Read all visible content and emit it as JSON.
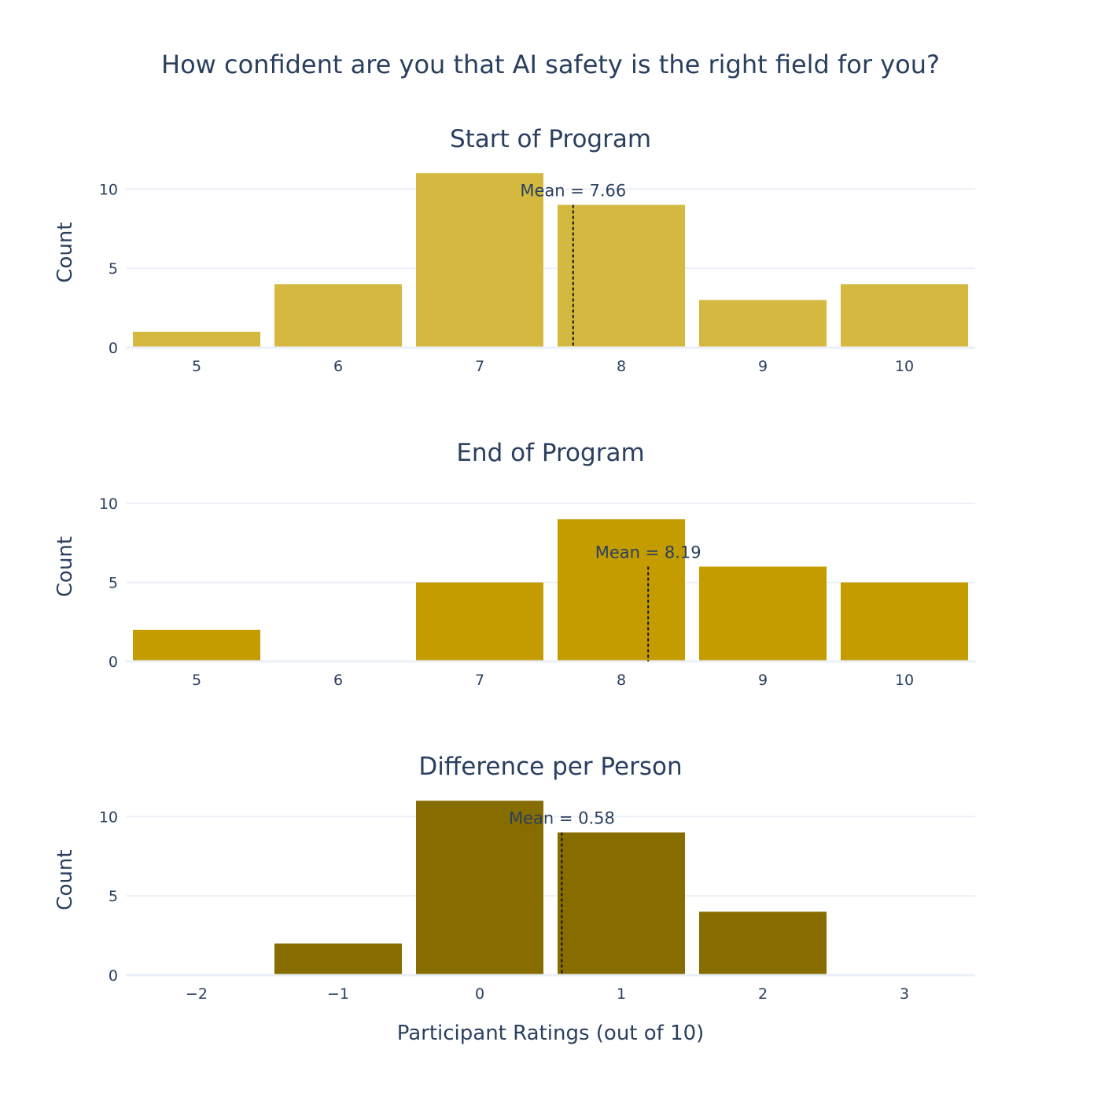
{
  "title": "How confident are you that AI safety is the right field for you?",
  "xlabel": "Participant Ratings (out of 10)",
  "chart_data": [
    {
      "type": "bar",
      "title": "Start of Program",
      "categories": [
        "5",
        "6",
        "7",
        "8",
        "9",
        "10"
      ],
      "x": [
        5,
        6,
        7,
        8,
        9,
        10
      ],
      "values": [
        1,
        4,
        11,
        9,
        3,
        4
      ],
      "ylabel": "Count",
      "ylim": [
        0,
        12
      ],
      "yticks": [
        0,
        5,
        10
      ],
      "mean": 7.66,
      "mean_label": "Mean = 7.66",
      "color": "#d4b83f"
    },
    {
      "type": "bar",
      "title": "End of Program",
      "categories": [
        "5",
        "6",
        "7",
        "8",
        "9",
        "10"
      ],
      "x": [
        5,
        6,
        7,
        8,
        9,
        10
      ],
      "values": [
        2,
        0,
        5,
        9,
        6,
        5
      ],
      "ylabel": "Count",
      "ylim": [
        0,
        12
      ],
      "yticks": [
        0,
        5,
        10
      ],
      "mean": 8.19,
      "mean_label": "Mean = 8.19",
      "color": "#c49c00"
    },
    {
      "type": "bar",
      "title": "Difference per Person",
      "categories": [
        "−2",
        "−1",
        "0",
        "1",
        "2",
        "3"
      ],
      "x": [
        -2,
        -1,
        0,
        1,
        2,
        3
      ],
      "values": [
        0,
        2,
        11,
        9,
        4,
        0
      ],
      "ylabel": "Count",
      "ylim": [
        0,
        12
      ],
      "yticks": [
        0,
        5,
        10
      ],
      "mean": 0.58,
      "mean_label": "Mean = 0.58",
      "color": "#876d00"
    }
  ]
}
